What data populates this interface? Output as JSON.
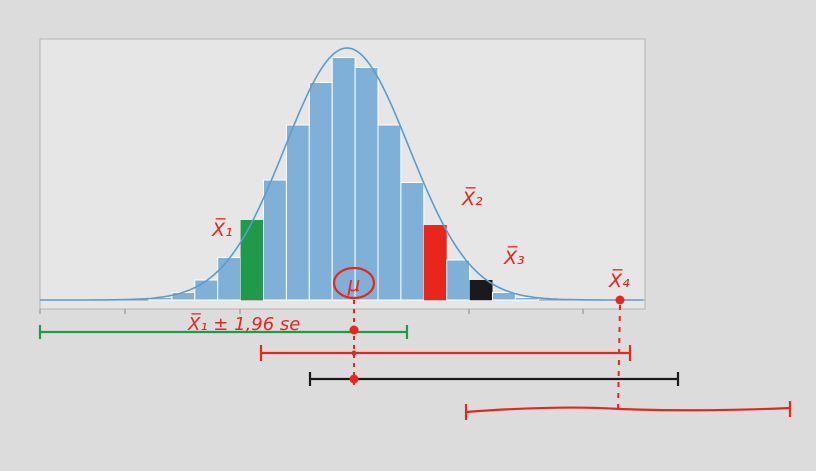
{
  "colors": {
    "background": "#dcdcdc",
    "plot_area": "#e6e6e6",
    "bar_fill": "#7fb1d8",
    "bar_edge": "#ffffff",
    "curve": "#5b9ccf",
    "ink_red": "#e8261c",
    "ink_green": "#1f9a48",
    "ink_black": "#1a1a1a"
  },
  "annotations": {
    "xbar1": "X̅₁",
    "xbar2": "X̅₂",
    "xbar3": "X̅₃",
    "xbar4": "X̅₄",
    "mu": "μ",
    "interval_formula": "X̅₁ ± 1,96 se"
  },
  "chart_data": {
    "type": "bar",
    "bin_heights_relative": [
      0.01,
      0.03,
      0.08,
      0.17,
      0.32,
      0.48,
      0.7,
      0.87,
      0.97,
      0.93,
      0.7,
      0.47,
      0.3,
      0.16,
      0.08,
      0.03,
      0.01
    ],
    "highlighted_bins": [
      {
        "index": 4,
        "label": "xbar1",
        "color": "green"
      },
      {
        "index": 12,
        "label": "xbar2",
        "color": "red"
      },
      {
        "index": 14,
        "label": "xbar3",
        "color": "black"
      }
    ],
    "curve": "normal",
    "grid": false,
    "legend": "none"
  },
  "intervals": [
    {
      "name": "interval-xbar1",
      "color": "green"
    },
    {
      "name": "interval-xbar2",
      "color": "red"
    },
    {
      "name": "interval-xbar3",
      "color": "black"
    },
    {
      "name": "interval-xbar4",
      "color": "red"
    }
  ]
}
